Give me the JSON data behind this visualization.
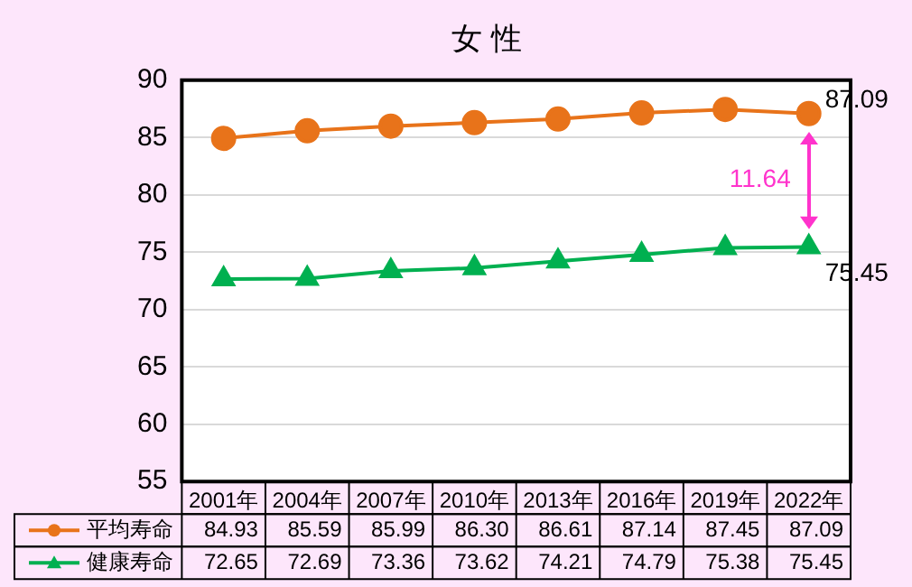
{
  "chart_data": {
    "type": "line",
    "title": "女 性",
    "categories": [
      "2001年",
      "2004年",
      "2007年",
      "2010年",
      "2013年",
      "2016年",
      "2019年",
      "2022年"
    ],
    "series": [
      {
        "name": "平均寿命",
        "color": "#e8731a",
        "marker": "circle",
        "values": [
          84.93,
          85.59,
          85.99,
          86.3,
          86.61,
          87.14,
          87.45,
          87.09
        ],
        "value_labels": [
          "84.93",
          "85.59",
          "85.99",
          "86.30",
          "86.61",
          "87.14",
          "87.45",
          "87.09"
        ]
      },
      {
        "name": "健康寿命",
        "color": "#00b050",
        "marker": "triangle",
        "values": [
          72.65,
          72.69,
          73.36,
          73.62,
          74.21,
          74.79,
          75.38,
          75.45
        ],
        "value_labels": [
          "72.65",
          "72.69",
          "73.36",
          "73.62",
          "74.21",
          "74.79",
          "75.38",
          "75.45"
        ]
      }
    ],
    "ylim": [
      55,
      90
    ],
    "yticks": [
      55,
      60,
      65,
      70,
      75,
      80,
      85,
      90
    ],
    "grid": "y",
    "legend": "bottom",
    "annotations": [
      "87.09",
      "75.45",
      "11.64"
    ]
  }
}
